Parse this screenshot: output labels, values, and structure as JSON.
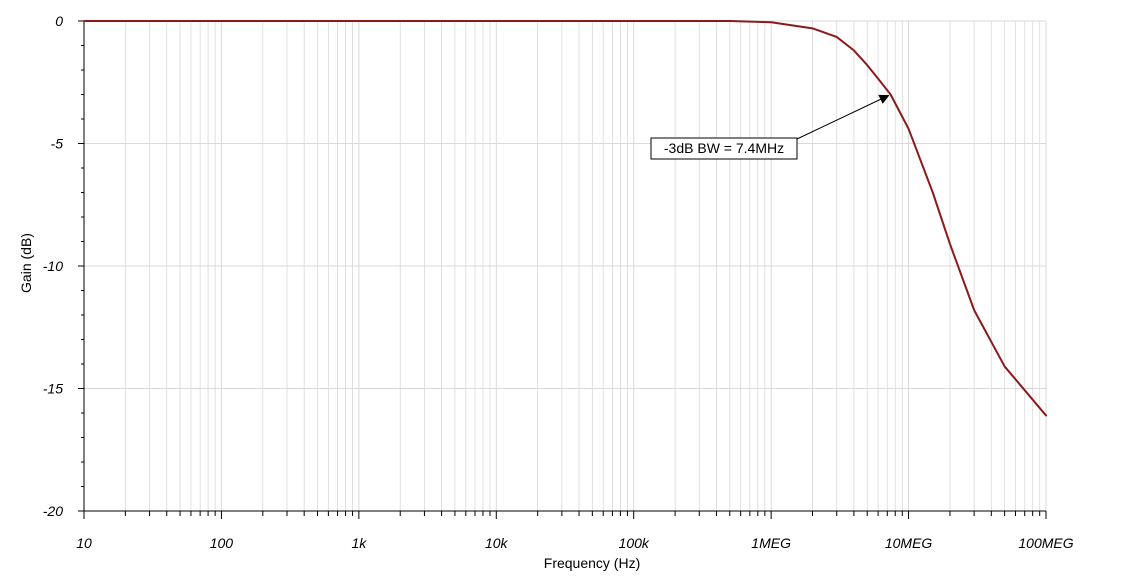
{
  "chart_data": {
    "type": "line",
    "title": "",
    "xlabel": "Frequency (Hz)",
    "ylabel": "Gain (dB)",
    "x_scale": "log",
    "xlim": [
      10,
      100000000
    ],
    "ylim": [
      -20,
      0
    ],
    "grid": true,
    "x_ticks": [
      10,
      100,
      1000,
      10000,
      100000,
      1000000,
      10000000,
      100000000
    ],
    "x_tick_labels": [
      "10",
      "100",
      "1k",
      "10k",
      "100k",
      "1MEG",
      "10MEG",
      "100MEG"
    ],
    "y_ticks": [
      0,
      -5,
      -10,
      -15,
      -20
    ],
    "y_tick_labels": [
      "0",
      "-5",
      "-10",
      "-15",
      "-20"
    ],
    "line_color": "#8b1a1a",
    "grid_color": "#d9d9d9",
    "series": [
      {
        "x": [
          10,
          100,
          1000,
          10000,
          100000,
          500000,
          1000000,
          2000000,
          3000000,
          4000000,
          5000000,
          6000000,
          7400000,
          10000000,
          15000000,
          20000000,
          30000000,
          50000000,
          100000000
        ],
        "y": [
          0,
          0,
          0,
          0,
          0,
          0,
          -0.05,
          -0.3,
          -0.65,
          -1.2,
          -1.8,
          -2.35,
          -3.0,
          -4.4,
          -7.0,
          -9.1,
          -11.8,
          -14.1,
          -16.1
        ]
      }
    ],
    "annotations": [
      {
        "text": "-3dB BW = 7.4MHz",
        "x": 7400000,
        "y": -3.0
      }
    ]
  }
}
